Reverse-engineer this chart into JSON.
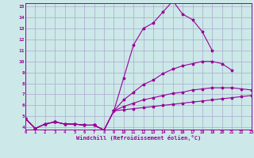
{
  "title": "",
  "xlabel": "Windchill (Refroidissement éolien,°C)",
  "bg_color": "#cce8e8",
  "line_color": "#990099",
  "grid_color": "#aaaacc",
  "xmin": 0,
  "xmax": 23,
  "ymin": 4,
  "ymax": 15,
  "series": [
    [
      4.8,
      3.9,
      4.3,
      4.5,
      4.3,
      4.3,
      4.2,
      4.2,
      3.75,
      5.5,
      8.5,
      11.5,
      13.0,
      13.5,
      14.5,
      15.5,
      14.3,
      13.8,
      12.7,
      11.0,
      null,
      null,
      null,
      null
    ],
    [
      4.8,
      3.9,
      4.3,
      4.5,
      4.3,
      4.3,
      4.2,
      4.2,
      3.75,
      5.5,
      6.5,
      7.2,
      7.9,
      8.3,
      8.9,
      9.3,
      9.6,
      9.8,
      10.0,
      10.0,
      9.8,
      9.2,
      null,
      null
    ],
    [
      4.8,
      3.9,
      4.3,
      4.5,
      4.3,
      4.3,
      4.2,
      4.2,
      3.75,
      5.5,
      5.9,
      6.2,
      6.5,
      6.7,
      6.9,
      7.1,
      7.2,
      7.4,
      7.5,
      7.6,
      7.6,
      7.6,
      7.5,
      7.4
    ],
    [
      4.8,
      3.9,
      4.3,
      4.5,
      4.3,
      4.3,
      4.2,
      4.2,
      3.75,
      5.5,
      5.6,
      5.7,
      5.8,
      5.9,
      6.0,
      6.1,
      6.2,
      6.3,
      6.4,
      6.5,
      6.6,
      6.7,
      6.8,
      6.9
    ]
  ],
  "x_ticks": [
    0,
    1,
    2,
    3,
    4,
    5,
    6,
    7,
    8,
    9,
    10,
    11,
    12,
    13,
    14,
    15,
    16,
    17,
    18,
    19,
    20,
    21,
    22,
    23
  ],
  "y_ticks": [
    4,
    5,
    6,
    7,
    8,
    9,
    10,
    11,
    12,
    13,
    14,
    15
  ],
  "figsize": [
    3.2,
    2.0
  ],
  "dpi": 100
}
